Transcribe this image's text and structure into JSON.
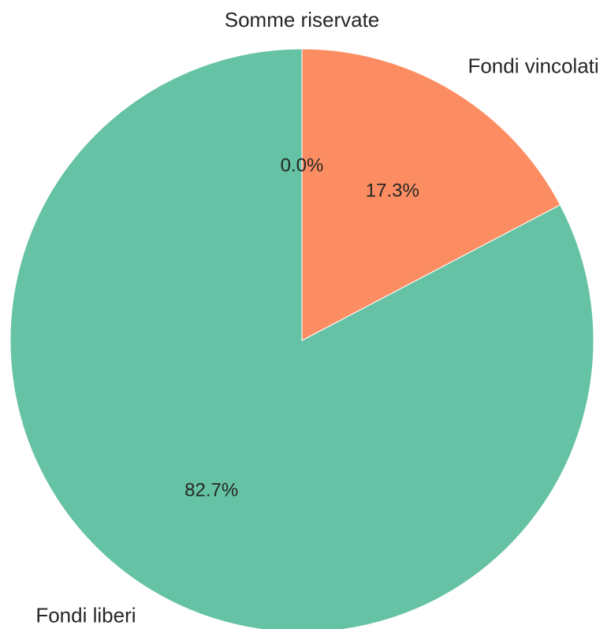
{
  "chart_data": {
    "type": "pie",
    "start_angle_deg": 90,
    "direction": "clockwise",
    "slices": [
      {
        "label": "Somme riservate",
        "value": 0.0,
        "pct_label": "0.0%",
        "color": "#8da0cb"
      },
      {
        "label": "Fondi vincolati",
        "value": 17.3,
        "pct_label": "17.3%",
        "color": "#fc8d62"
      },
      {
        "label": "Fondi liberi",
        "value": 82.7,
        "pct_label": "82.7%",
        "color": "#66c2a5"
      }
    ],
    "slice_edge_color": "#ffffff"
  }
}
